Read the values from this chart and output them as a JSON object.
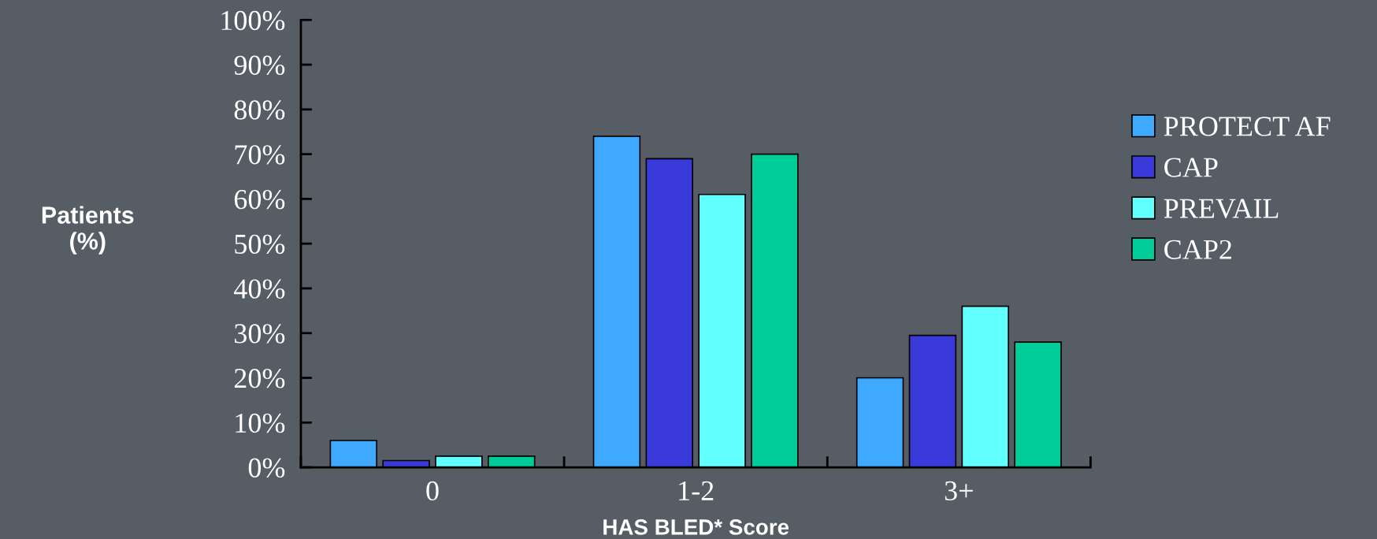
{
  "chart_data": {
    "type": "bar",
    "xlabel": "HAS BLED* Score",
    "ylabel": "Patients\n(%)",
    "categories": [
      "0",
      "1-2",
      "3+"
    ],
    "series": [
      {
        "name": "PROTECT AF",
        "color": "#3fa8ff",
        "values": [
          6,
          74,
          20
        ]
      },
      {
        "name": "CAP",
        "color": "#3a3adb",
        "values": [
          1.5,
          69,
          29.5
        ]
      },
      {
        "name": "PREVAIL",
        "color": "#62ffff",
        "values": [
          2.5,
          61,
          36
        ]
      },
      {
        "name": "CAP2",
        "color": "#00cc99",
        "values": [
          2.5,
          70,
          28
        ]
      }
    ],
    "ylim": [
      0,
      100
    ],
    "yticks": [
      {
        "value": 0,
        "label": "0%"
      },
      {
        "value": 10,
        "label": "10%"
      },
      {
        "value": 20,
        "label": "20%"
      },
      {
        "value": 30,
        "label": "30%"
      },
      {
        "value": 40,
        "label": "40%"
      },
      {
        "value": 50,
        "label": "50%"
      },
      {
        "value": 60,
        "label": "60%"
      },
      {
        "value": 70,
        "label": "70%"
      },
      {
        "value": 80,
        "label": "80%"
      },
      {
        "value": 90,
        "label": "90%"
      },
      {
        "value": 100,
        "label": "100%"
      }
    ],
    "grid": false,
    "legend": "right"
  }
}
